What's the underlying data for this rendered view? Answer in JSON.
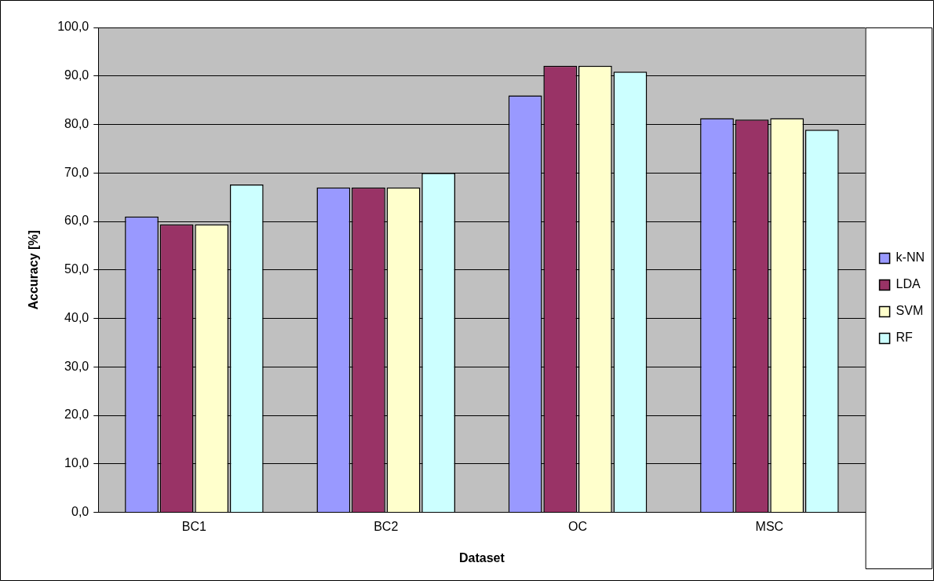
{
  "chart_data": {
    "type": "bar",
    "xlabel": "Dataset",
    "ylabel": "Accuracy [%]",
    "categories": [
      "BC1",
      "BC2",
      "OC",
      "MSC"
    ],
    "series": [
      {
        "name": "k-NN",
        "color": "#9999ff",
        "values": [
          61.0,
          67.0,
          86.0,
          81.3
        ]
      },
      {
        "name": "LDA",
        "color": "#993366",
        "values": [
          59.4,
          67.0,
          92.1,
          81.0
        ]
      },
      {
        "name": "SVM",
        "color": "#ffffcc",
        "values": [
          59.4,
          67.0,
          92.1,
          81.3
        ]
      },
      {
        "name": "RF",
        "color": "#ccffff",
        "values": [
          67.6,
          70.0,
          90.9,
          78.9
        ]
      }
    ],
    "ylim": [
      0,
      100
    ],
    "yticks": [
      {
        "value": 0,
        "label": "0,0"
      },
      {
        "value": 10,
        "label": "10,0"
      },
      {
        "value": 20,
        "label": "20,0"
      },
      {
        "value": 30,
        "label": "30,0"
      },
      {
        "value": 40,
        "label": "40,0"
      },
      {
        "value": 50,
        "label": "50,0"
      },
      {
        "value": 60,
        "label": "60,0"
      },
      {
        "value": 70,
        "label": "70,0"
      },
      {
        "value": 80,
        "label": "80,0"
      },
      {
        "value": 90,
        "label": "90,0"
      },
      {
        "value": 100,
        "label": "100,0"
      }
    ],
    "grid": "y",
    "legend": "right"
  }
}
